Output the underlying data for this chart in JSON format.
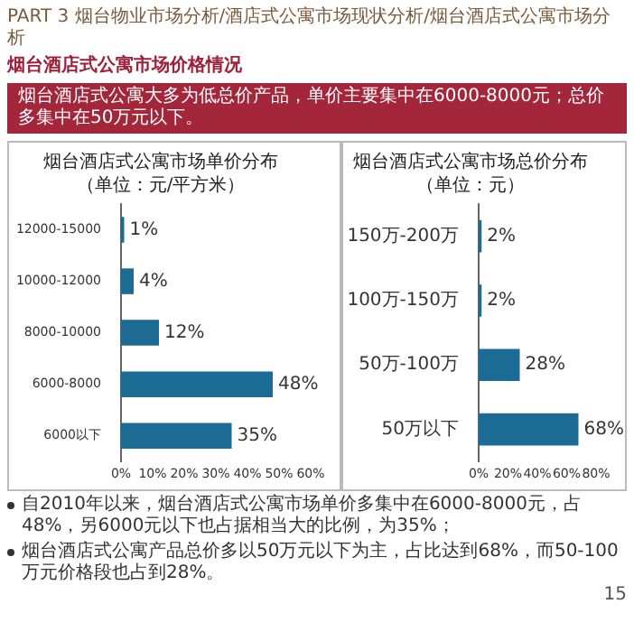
{
  "chart_data": [
    {
      "type": "other",
      "title": "PART 3 烟台物业市场分析/酒店式公寓市场现状分析/烟台酒店式公寓市场分析",
      "subtitle": "烟台酒店式公寓市场价格情况",
      "annotations": [
        "烟台酒店式公寓大多为低总价产品，单价主要集中在6000-8000元；总价多集中在50万元以下。"
      ]
    },
    {
      "type": "bar",
      "orientation": "horizontal",
      "title": "烟台酒店式公寓市场单价分布",
      "subtitle": "（单位：元/平方米）",
      "categories": [
        "12000-15000",
        "10000-12000",
        "8000-10000",
        "6000-8000",
        "6000以下"
      ],
      "values": [
        1,
        4,
        12,
        48,
        35
      ],
      "value_labels": [
        "1%",
        "4%",
        "12%",
        "48%",
        "35%"
      ],
      "color": "#1c6b94",
      "xlim": [
        0,
        60
      ],
      "xticks": [
        {
          "value": 0,
          "label": "0%"
        },
        {
          "value": 10,
          "label": "10%"
        },
        {
          "value": 20,
          "label": "20%"
        },
        {
          "value": 30,
          "label": "30%"
        },
        {
          "value": 40,
          "label": "40%"
        },
        {
          "value": 50,
          "label": "50%"
        },
        {
          "value": 60,
          "label": "60%"
        }
      ],
      "grid": false
    },
    {
      "type": "bar",
      "orientation": "horizontal",
      "title": "烟台酒店式公寓市场总价分布",
      "subtitle": "（单位：元）",
      "categories": [
        "150万-200万",
        "100万-150万",
        "50万-100万",
        "50万以下"
      ],
      "values": [
        2,
        2,
        28,
        68
      ],
      "value_labels": [
        "2%",
        "2%",
        "28%",
        "68%"
      ],
      "color": "#1c6b94",
      "xlim": [
        0,
        80
      ],
      "xticks": [
        {
          "value": 0,
          "label": "0%"
        },
        {
          "value": 20,
          "label": "20%"
        },
        {
          "value": 40,
          "label": "40%"
        },
        {
          "value": 60,
          "label": "60%"
        },
        {
          "value": 80,
          "label": "80%"
        }
      ],
      "grid": false
    },
    {
      "type": "other",
      "annotations": [
        "自2010年以来，烟台酒店式公寓市场单价多集中在6000-8000元，占48%，另6000元以下也占据相当大的比例，为35%；",
        "烟台酒店式公寓产品总价多以50万元以下为主，占比达到68%，而50-100万元价格段也占到28%。",
        "15"
      ]
    }
  ]
}
